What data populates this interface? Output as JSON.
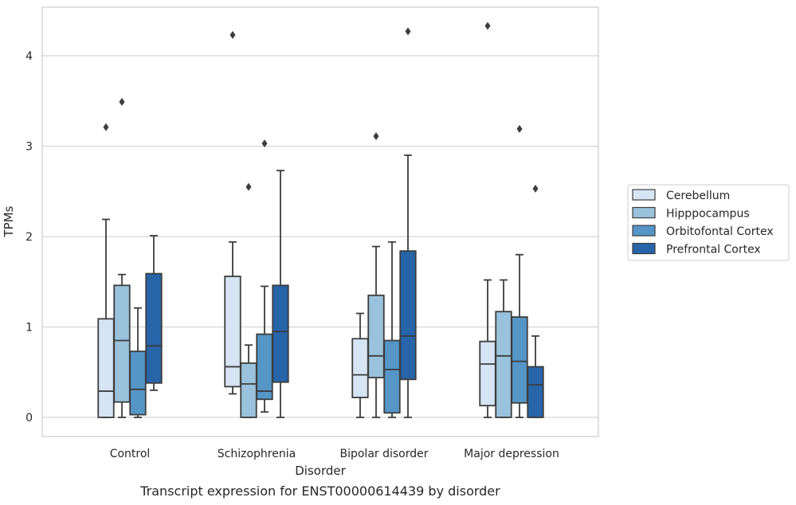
{
  "chart_data": {
    "type": "box",
    "title": "",
    "caption": "Transcript expression for ENST00000614439 by disorder",
    "xlabel": "Disorder",
    "ylabel": "TPMs",
    "ylim": [
      -0.2,
      4.55
    ],
    "yticks": [
      0,
      1,
      2,
      3,
      4
    ],
    "grid": true,
    "legend_position": "right",
    "categories": [
      "Control",
      "Schizophrenia",
      "Bipolar disorder",
      "Major depression"
    ],
    "series": [
      {
        "name": "Cerebellum",
        "color": "#d6e4f3",
        "boxes": [
          {
            "whislo": 0.0,
            "q1": 0.0,
            "med": 0.29,
            "q3": 1.09,
            "whishi": 2.19,
            "fliers": [
              3.21
            ]
          },
          {
            "whislo": 0.26,
            "q1": 0.34,
            "med": 0.56,
            "q3": 1.56,
            "whishi": 1.94,
            "fliers": [
              4.23
            ]
          },
          {
            "whislo": 0.0,
            "q1": 0.22,
            "med": 0.47,
            "q3": 0.87,
            "whishi": 1.15,
            "fliers": []
          },
          {
            "whislo": 0.0,
            "q1": 0.13,
            "med": 0.59,
            "q3": 0.84,
            "whishi": 1.52,
            "fliers": [
              4.33
            ]
          }
        ]
      },
      {
        "name": "Hipppocampus",
        "color": "#9ac2dc",
        "boxes": [
          {
            "whislo": 0.0,
            "q1": 0.17,
            "med": 0.85,
            "q3": 1.46,
            "whishi": 1.58,
            "fliers": [
              3.49
            ]
          },
          {
            "whislo": 0.0,
            "q1": 0.0,
            "med": 0.37,
            "q3": 0.6,
            "whishi": 0.8,
            "fliers": [
              2.55
            ]
          },
          {
            "whislo": 0.0,
            "q1": 0.44,
            "med": 0.68,
            "q3": 1.35,
            "whishi": 1.89,
            "fliers": [
              3.11
            ]
          },
          {
            "whislo": 0.0,
            "q1": 0.0,
            "med": 0.68,
            "q3": 1.17,
            "whishi": 1.52,
            "fliers": []
          }
        ]
      },
      {
        "name": "Orbitofontal Cortex",
        "color": "#5596c7",
        "boxes": [
          {
            "whislo": 0.0,
            "q1": 0.03,
            "med": 0.31,
            "q3": 0.73,
            "whishi": 1.21,
            "fliers": []
          },
          {
            "whislo": 0.06,
            "q1": 0.2,
            "med": 0.29,
            "q3": 0.92,
            "whishi": 1.45,
            "fliers": [
              3.03
            ]
          },
          {
            "whislo": 0.0,
            "q1": 0.05,
            "med": 0.53,
            "q3": 0.85,
            "whishi": 1.94,
            "fliers": []
          },
          {
            "whislo": 0.0,
            "q1": 0.16,
            "med": 0.62,
            "q3": 1.11,
            "whishi": 1.8,
            "fliers": [
              3.19
            ]
          }
        ]
      },
      {
        "name": "Prefrontal Cortex",
        "color": "#2764a8",
        "boxes": [
          {
            "whislo": 0.3,
            "q1": 0.38,
            "med": 0.79,
            "q3": 1.59,
            "whishi": 2.01,
            "fliers": []
          },
          {
            "whislo": 0.0,
            "q1": 0.39,
            "med": 0.95,
            "q3": 1.46,
            "whishi": 2.73,
            "fliers": []
          },
          {
            "whislo": 0.0,
            "q1": 0.42,
            "med": 0.9,
            "q3": 1.84,
            "whishi": 2.9,
            "fliers": [
              4.27
            ]
          },
          {
            "whislo": 0.0,
            "q1": 0.0,
            "med": 0.36,
            "q3": 0.56,
            "whishi": 0.9,
            "fliers": [
              2.53
            ]
          }
        ]
      }
    ]
  }
}
